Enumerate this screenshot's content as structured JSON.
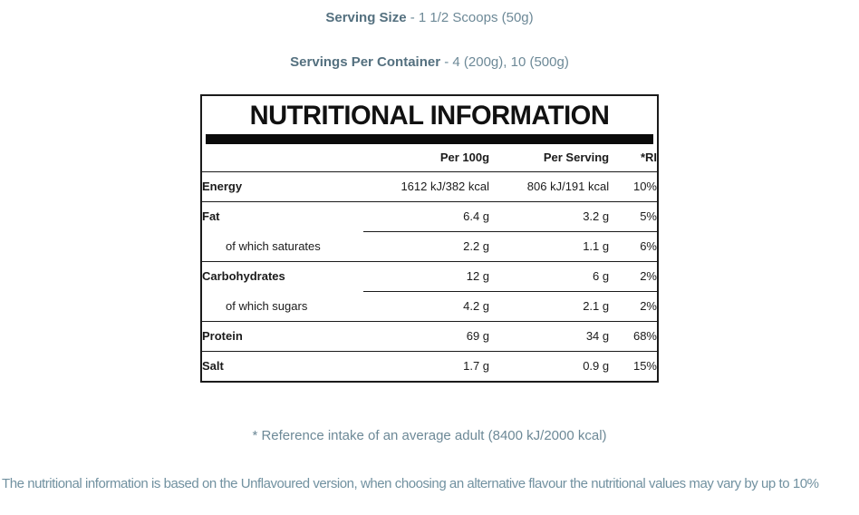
{
  "header": {
    "serving_size_label": "Serving Size",
    "serving_size_value": " - 1 1/2 Scoops (50g)",
    "servings_label": "Servings Per Container",
    "servings_value": " - 4 (200g), 10 (500g)"
  },
  "table": {
    "title": "NUTRITIONAL INFORMATION",
    "columns": [
      "Per 100g",
      "Per Serving",
      "*RI"
    ],
    "rows": [
      {
        "label": "Energy",
        "indent": false,
        "per_100g": "1612 kJ/382 kcal",
        "per_serving": "806 kJ/191 kcal",
        "ri": "10%",
        "divider": "full"
      },
      {
        "label": "Fat",
        "indent": false,
        "per_100g": "6.4 g",
        "per_serving": "3.2 g",
        "ri": "5%",
        "divider": "partial"
      },
      {
        "label": "of which saturates",
        "indent": true,
        "per_100g": "2.2 g",
        "per_serving": "1.1 g",
        "ri": "6%",
        "divider": "full"
      },
      {
        "label": "Carbohydrates",
        "indent": false,
        "per_100g": "12 g",
        "per_serving": "6 g",
        "ri": "2%",
        "divider": "partial"
      },
      {
        "label": "of which sugars",
        "indent": true,
        "per_100g": "4.2 g",
        "per_serving": "2.1 g",
        "ri": "2%",
        "divider": "full"
      },
      {
        "label": "Protein",
        "indent": false,
        "per_100g": "69 g",
        "per_serving": "34 g",
        "ri": "68%",
        "divider": "full"
      },
      {
        "label": "Salt",
        "indent": false,
        "per_100g": "1.7 g",
        "per_serving": "0.9 g",
        "ri": "15%",
        "divider": "none"
      }
    ]
  },
  "footnote": "* Reference intake of an average adult (8400 kJ/2000 kcal)",
  "disclaimer": "The nutritional information is based on the Unflavoured version, when choosing an alternative flavour the nutritional values may vary by up to 10%",
  "colors": {
    "accent_label": "#54707f",
    "accent_text": "#6d8997",
    "table_ink": "#1b1b1b",
    "title_bar": "#0b0b0b"
  }
}
